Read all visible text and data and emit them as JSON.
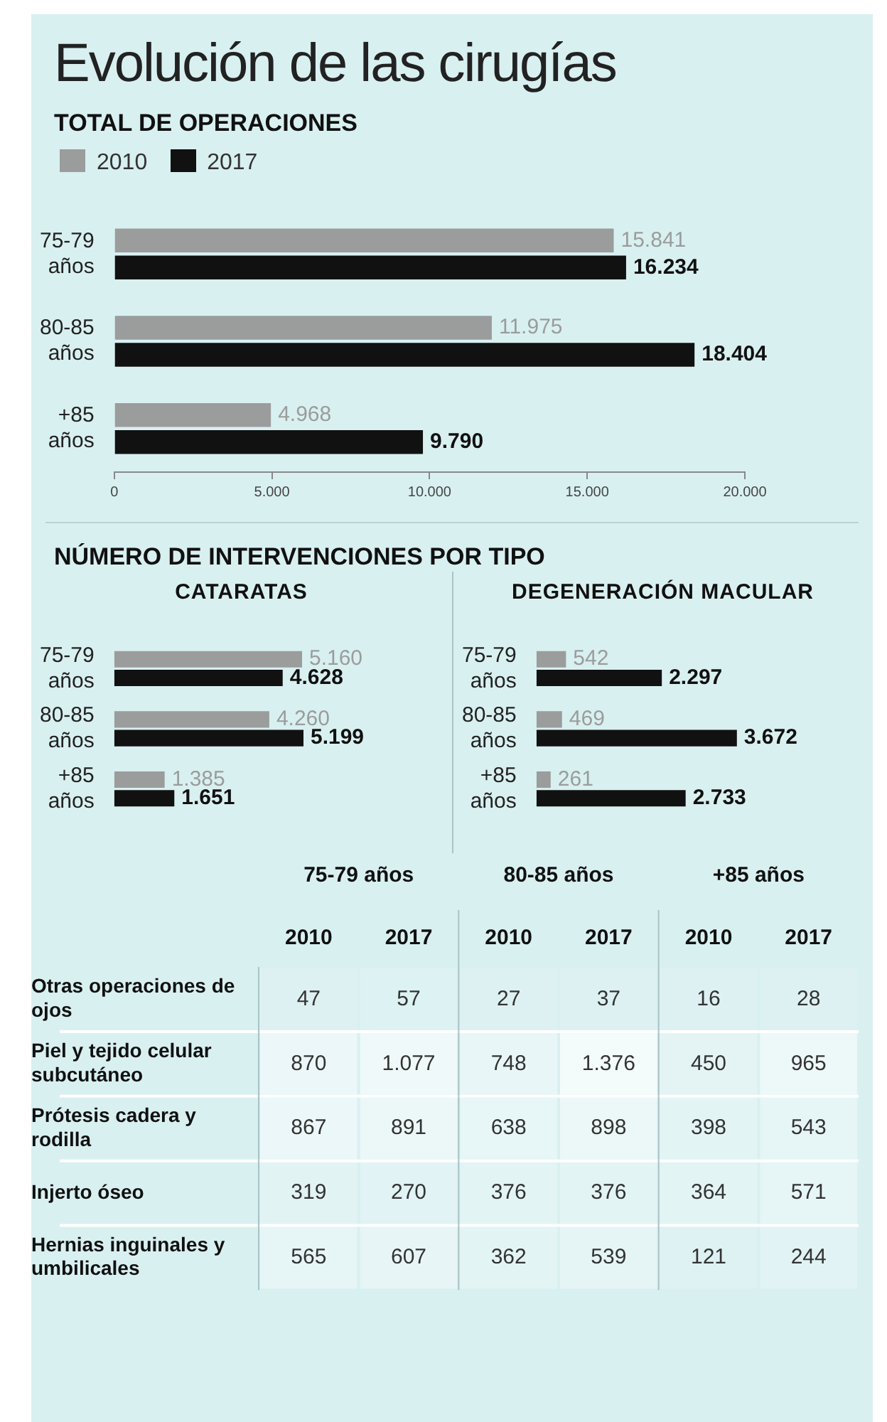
{
  "chart_data": [
    {
      "type": "bar",
      "title": "Evolución de las cirugías",
      "subtitle": "TOTAL DE OPERACIONES",
      "orientation": "horizontal",
      "categories": [
        "75-79 años",
        "80-85 años",
        "+85 años"
      ],
      "series": [
        {
          "name": "2010",
          "color": "#9a9d9c",
          "values": [
            15841,
            11975,
            4968
          ],
          "value_labels": [
            "15.841",
            "11.975",
            "4.968"
          ]
        },
        {
          "name": "2017",
          "color": "#111111",
          "values": [
            16234,
            18404,
            9790
          ],
          "value_labels": [
            "16.234",
            "18.404",
            "9.790"
          ]
        }
      ],
      "xlim": [
        0,
        20000
      ],
      "xticks": [
        0,
        {
          "value": 5000,
          "label": "5.000"
        },
        {
          "value": 10000,
          "label": "10.000"
        },
        {
          "value": 15000,
          "label": "15.000"
        },
        {
          "value": 20000,
          "label": "20.000"
        }
      ],
      "grid": false,
      "legend": "top left"
    },
    {
      "type": "bar",
      "title": "NÚMERO DE INTERVENCIONES POR TIPO",
      "subtitle": "CATARATAS",
      "orientation": "horizontal",
      "categories": [
        "75-79 años",
        "80-85 años",
        "+85 años"
      ],
      "series": [
        {
          "color": "#9a9d9c",
          "values": [
            5160,
            4260,
            1385
          ],
          "value_labels": [
            "5.160",
            "4.260",
            "1.385"
          ]
        },
        {
          "color": "#111111",
          "values": [
            4628,
            5199,
            1651
          ],
          "value_labels": [
            "4.628",
            "5.199",
            "1.651"
          ]
        }
      ],
      "tick_labels": "y",
      "grid": false
    },
    {
      "type": "bar",
      "title": "DEGENERACIÓN MACULAR",
      "orientation": "horizontal",
      "categories": [
        "75-79 años",
        "80-85 años",
        "+85 años"
      ],
      "series": [
        {
          "color": "#9a9d9c",
          "values": [
            542,
            469,
            261
          ],
          "value_labels": [
            "542",
            "469",
            "261"
          ]
        },
        {
          "color": "#111111",
          "values": [
            2297,
            3672,
            2733
          ],
          "value_labels": [
            "2.297",
            "3.672",
            "2.733"
          ]
        }
      ],
      "tick_labels": "y",
      "grid": false
    },
    {
      "type": "heatmap",
      "categories": [
        "2010",
        "2017",
        "2010",
        "2017",
        "2010",
        "2017"
      ],
      "annotations": [
        "75-79 años",
        "80-85 años",
        "+85 años"
      ],
      "y_categories": [
        "Otras operaciones de ojos",
        "Piel y tejido celular subcutáneo",
        "Prótesis cadera y rodilla",
        "Injerto óseo",
        "Hernias inguinales y umbilicales"
      ],
      "cells": [
        [
          47,
          57,
          27,
          37,
          16,
          28
        ],
        [
          870,
          1077,
          748,
          1376,
          450,
          965
        ],
        [
          867,
          891,
          638,
          898,
          398,
          543
        ],
        [
          319,
          270,
          376,
          376,
          364,
          571
        ],
        [
          565,
          607,
          362,
          539,
          121,
          244
        ]
      ],
      "data_labels": true,
      "cell_labels": [
        [
          "47",
          "57",
          "27",
          "37",
          "16",
          "28"
        ],
        [
          "870",
          "1.077",
          "748",
          "1.376",
          "450",
          "965"
        ],
        [
          "867",
          "891",
          "638",
          "898",
          "398",
          "543"
        ],
        [
          "319",
          "270",
          "376",
          "376",
          "364",
          "571"
        ],
        [
          "565",
          "607",
          "362",
          "539",
          "121",
          "244"
        ]
      ]
    }
  ]
}
